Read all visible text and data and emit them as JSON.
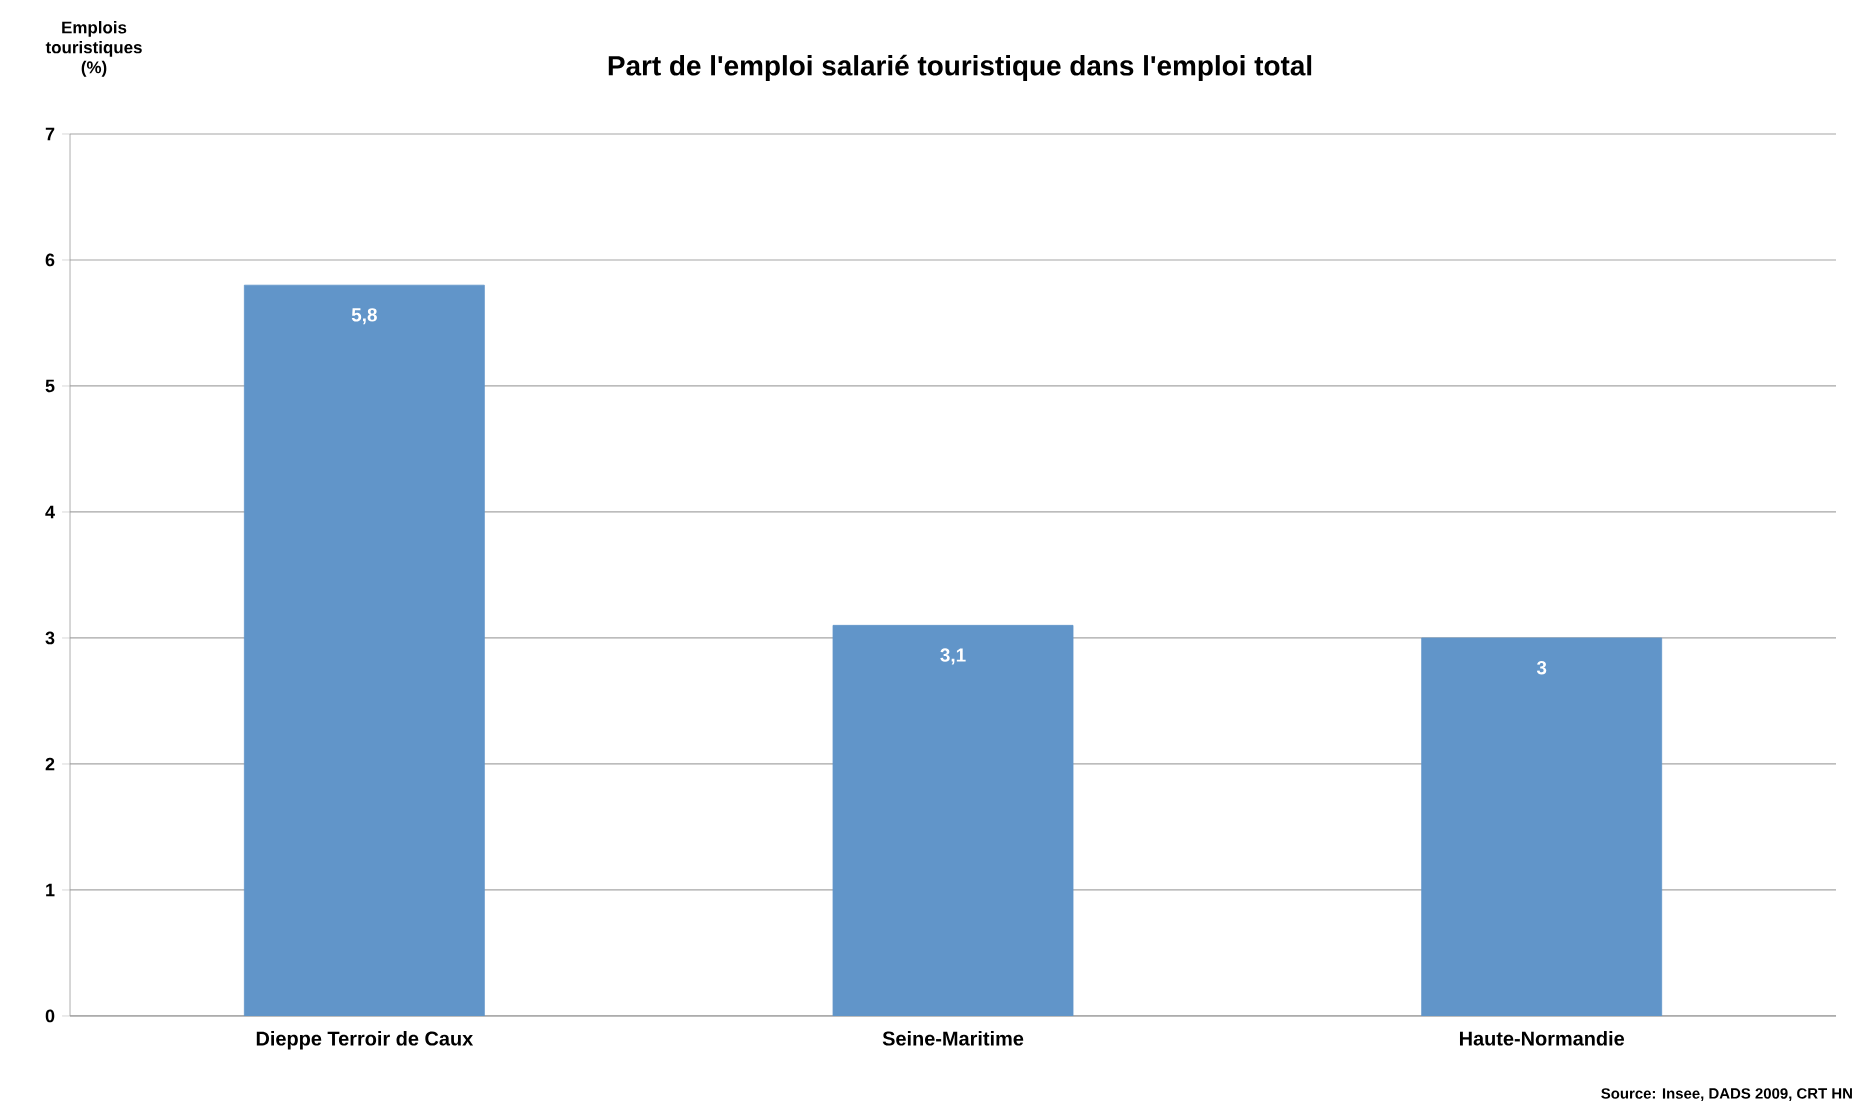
{
  "chart_data": {
    "type": "bar",
    "title": "Part de l'emploi salarié touristique dans l'emploi total",
    "ylabel": "Emplois touristiques (%)",
    "categories": [
      "Dieppe Terroir de Caux",
      "Seine-Maritime",
      "Haute-Normandie"
    ],
    "values": [
      5.8,
      3.1,
      3
    ],
    "color": "#6195c9",
    "value_labels": [
      "5,8",
      "3,1",
      "3"
    ],
    "ylim": [
      0,
      7
    ],
    "yticks": [
      0,
      1,
      2,
      3,
      4,
      5,
      6,
      7
    ],
    "grid": "y",
    "annotations": [
      "Source: Insee, DADS 2009, CRT HN"
    ]
  }
}
